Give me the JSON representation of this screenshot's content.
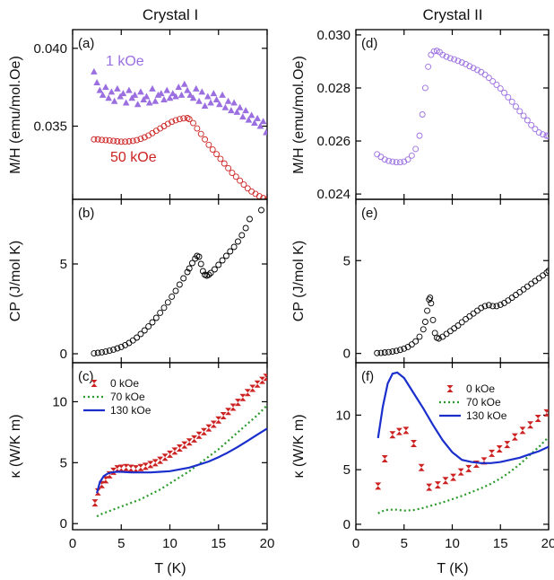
{
  "figure": {
    "columns": [
      {
        "title": "Crystal I",
        "xlabel": "T (K)"
      },
      {
        "title": "Crystal II",
        "xlabel": "T (K)"
      }
    ],
    "colors": {
      "purple": "#9b6fe0",
      "red": "#cc2222",
      "black": "#000000",
      "green": "#2a9a2a",
      "blue": "#1a2fcc"
    }
  },
  "chart_data": [
    {
      "panel": "(a)",
      "type": "scatter",
      "ylabel": "M/H (emu/mol.Oe)",
      "xlim": [
        0,
        20
      ],
      "ylim": [
        0.0303,
        0.0412
      ],
      "yticks": [
        0.035,
        0.04
      ],
      "yticklabels": [
        "0.035",
        "0.040"
      ],
      "xticks": [
        0,
        5,
        10,
        15,
        20
      ],
      "series": [
        {
          "name": "1 kOe",
          "marker": "triangle",
          "color": "#9b6fe0",
          "x": [
            2.2,
            2.5,
            2.8,
            3.1,
            3.4,
            3.7,
            4.0,
            4.3,
            4.6,
            4.9,
            5.2,
            5.5,
            5.8,
            6.1,
            6.4,
            6.7,
            7.0,
            7.3,
            7.6,
            7.9,
            8.2,
            8.5,
            8.8,
            9.1,
            9.4,
            9.7,
            10.0,
            10.3,
            10.6,
            10.9,
            11.2,
            11.5,
            11.8,
            12.1,
            12.4,
            12.7,
            13.0,
            13.3,
            13.6,
            13.9,
            14.2,
            14.5,
            14.8,
            15.1,
            15.4,
            15.7,
            16.0,
            16.3,
            16.6,
            16.9,
            17.2,
            17.5,
            17.8,
            18.1,
            18.4,
            18.7,
            19.0,
            19.3,
            19.6,
            19.9
          ],
          "y": [
            0.0385,
            0.0378,
            0.0373,
            0.037,
            0.0375,
            0.0368,
            0.0372,
            0.0366,
            0.0374,
            0.0369,
            0.0371,
            0.0365,
            0.0373,
            0.0368,
            0.037,
            0.0364,
            0.0372,
            0.0367,
            0.0369,
            0.0365,
            0.0374,
            0.0366,
            0.037,
            0.0371,
            0.0367,
            0.0373,
            0.0368,
            0.0371,
            0.0369,
            0.0375,
            0.037,
            0.0377,
            0.0373,
            0.037,
            0.0368,
            0.0374,
            0.0366,
            0.0372,
            0.0363,
            0.0369,
            0.0365,
            0.0371,
            0.0367,
            0.0364,
            0.037,
            0.0362,
            0.0366,
            0.036,
            0.0365,
            0.0359,
            0.0362,
            0.0356,
            0.036,
            0.0354,
            0.0357,
            0.0352,
            0.0355,
            0.035,
            0.0353,
            0.0346
          ]
        },
        {
          "name": "50 kOe",
          "marker": "circle-open",
          "color": "#cc2222",
          "x": [
            2.2,
            2.6,
            3.0,
            3.4,
            3.8,
            4.2,
            4.6,
            5.0,
            5.4,
            5.8,
            6.2,
            6.6,
            7.0,
            7.4,
            7.8,
            8.2,
            8.6,
            9.0,
            9.4,
            9.8,
            10.2,
            10.6,
            11.0,
            11.4,
            11.8,
            12.0,
            12.4,
            12.8,
            13.2,
            13.6,
            14.0,
            14.4,
            14.8,
            15.2,
            15.6,
            16.0,
            16.4,
            16.8,
            17.2,
            17.6,
            18.0,
            18.4,
            18.8,
            19.2,
            19.6,
            20.0
          ],
          "y": [
            0.03415,
            0.03415,
            0.03412,
            0.0341,
            0.03408,
            0.03405,
            0.03402,
            0.034,
            0.034,
            0.03402,
            0.03405,
            0.0341,
            0.03418,
            0.03428,
            0.0344,
            0.03455,
            0.0347,
            0.03485,
            0.035,
            0.03515,
            0.03528,
            0.03538,
            0.03545,
            0.0355,
            0.03552,
            0.03545,
            0.0352,
            0.03485,
            0.0345,
            0.03415,
            0.0338,
            0.0335,
            0.0332,
            0.0329,
            0.0326,
            0.0323,
            0.032,
            0.03175,
            0.0315,
            0.03125,
            0.031,
            0.0308,
            0.03065,
            0.0305,
            0.03038,
            0.0303
          ]
        }
      ]
    },
    {
      "panel": "(d)",
      "type": "scatter",
      "ylabel": "M/H (emu/mol.Oe)",
      "xlim": [
        0,
        20
      ],
      "ylim": [
        0.0238,
        0.0302
      ],
      "yticks": [
        0.024,
        0.026,
        0.028,
        0.03
      ],
      "yticklabels": [
        "0.024",
        "0.026",
        "0.028",
        "0.030"
      ],
      "xticks": [
        0,
        5,
        10,
        15,
        20
      ],
      "series": [
        {
          "name": "",
          "marker": "circle-open",
          "color": "#9b6fe0",
          "x": [
            2.2,
            2.6,
            3.0,
            3.4,
            3.8,
            4.2,
            4.6,
            5.0,
            5.4,
            5.8,
            6.2,
            6.6,
            6.9,
            7.2,
            7.5,
            7.8,
            8.1,
            8.4,
            8.7,
            9.0,
            9.4,
            9.8,
            10.2,
            10.6,
            11.0,
            11.4,
            11.8,
            12.2,
            12.6,
            13.0,
            13.4,
            13.8,
            14.2,
            14.6,
            15.0,
            15.4,
            15.8,
            16.2,
            16.6,
            17.0,
            17.4,
            17.8,
            18.2,
            18.6,
            19.0,
            19.4,
            19.8,
            20.0
          ],
          "y": [
            0.0255,
            0.0254,
            0.0253,
            0.02525,
            0.02522,
            0.0252,
            0.0252,
            0.02522,
            0.0253,
            0.02545,
            0.0257,
            0.0262,
            0.027,
            0.028,
            0.0288,
            0.02925,
            0.02938,
            0.0294,
            0.02935,
            0.02925,
            0.02918,
            0.02912,
            0.02908,
            0.02902,
            0.02896,
            0.0289,
            0.02882,
            0.02875,
            0.02868,
            0.0286,
            0.0285,
            0.02838,
            0.02825,
            0.02812,
            0.02798,
            0.02782,
            0.02765,
            0.02748,
            0.0273,
            0.02712,
            0.02695,
            0.02678,
            0.0266,
            0.02645,
            0.02632,
            0.02625,
            0.0262,
            0.02618
          ]
        }
      ]
    },
    {
      "panel": "(b)",
      "type": "scatter",
      "ylabel": "CP (J/mol K)",
      "xlim": [
        0,
        20
      ],
      "ylim": [
        -0.5,
        8.6
      ],
      "yticks": [
        0,
        5
      ],
      "yticklabels": [
        "0",
        "5"
      ],
      "xticks": [
        0,
        5,
        10,
        15,
        20
      ],
      "series": [
        {
          "name": "",
          "marker": "circle-open",
          "color": "#000000",
          "x": [
            2.2,
            2.6,
            3.0,
            3.4,
            3.8,
            4.2,
            4.6,
            5.0,
            5.4,
            5.8,
            6.2,
            6.6,
            7.0,
            7.4,
            7.8,
            8.2,
            8.6,
            9.0,
            9.4,
            9.8,
            10.2,
            10.6,
            11.0,
            11.4,
            11.8,
            12.0,
            12.3,
            12.6,
            12.8,
            13.0,
            13.2,
            13.4,
            13.6,
            13.8,
            14.0,
            14.2,
            14.6,
            15.0,
            15.4,
            15.8,
            16.2,
            16.6,
            17.0,
            17.4,
            17.8,
            18.2,
            19.4
          ],
          "y": [
            0.02,
            0.05,
            0.08,
            0.12,
            0.17,
            0.23,
            0.3,
            0.38,
            0.48,
            0.6,
            0.74,
            0.9,
            1.1,
            1.3,
            1.52,
            1.75,
            2.0,
            2.28,
            2.56,
            2.86,
            3.18,
            3.5,
            3.85,
            4.2,
            4.55,
            4.75,
            5.05,
            5.3,
            5.45,
            5.4,
            5.0,
            4.6,
            4.4,
            4.35,
            4.4,
            4.5,
            4.7,
            4.95,
            5.2,
            5.45,
            5.7,
            5.95,
            6.25,
            6.6,
            7.0,
            7.5,
            8.0
          ]
        }
      ]
    },
    {
      "panel": "(e)",
      "type": "scatter",
      "ylabel": "CP (J/mol K)",
      "xlim": [
        0,
        20
      ],
      "ylim": [
        -0.5,
        8.3
      ],
      "yticks": [
        0,
        5
      ],
      "yticklabels": [
        "0",
        "5"
      ],
      "xticks": [
        0,
        5,
        10,
        15,
        20
      ],
      "series": [
        {
          "name": "",
          "marker": "circle-open",
          "color": "#000000",
          "x": [
            2.2,
            2.6,
            3.0,
            3.4,
            3.8,
            4.2,
            4.6,
            5.0,
            5.4,
            5.8,
            6.2,
            6.6,
            7.0,
            7.2,
            7.4,
            7.6,
            7.7,
            7.8,
            8.0,
            8.2,
            8.4,
            8.6,
            9.0,
            9.4,
            9.8,
            10.2,
            10.6,
            11.0,
            11.4,
            11.8,
            12.2,
            12.6,
            13.0,
            13.4,
            13.8,
            14.2,
            14.6,
            15.0,
            15.4,
            15.8,
            16.2,
            16.6,
            17.0,
            17.4,
            17.8,
            18.2,
            18.6,
            19.0,
            19.4,
            19.8,
            20.0
          ],
          "y": [
            0.02,
            0.03,
            0.05,
            0.07,
            0.1,
            0.14,
            0.19,
            0.26,
            0.35,
            0.48,
            0.65,
            0.9,
            1.3,
            1.7,
            2.3,
            2.9,
            3.0,
            2.7,
            1.8,
            1.1,
            0.85,
            0.8,
            0.9,
            1.05,
            1.2,
            1.35,
            1.5,
            1.68,
            1.85,
            2.0,
            2.15,
            2.3,
            2.45,
            2.55,
            2.6,
            2.55,
            2.55,
            2.62,
            2.72,
            2.85,
            3.0,
            3.15,
            3.3,
            3.45,
            3.6,
            3.75,
            3.9,
            4.05,
            4.2,
            4.35,
            4.45
          ]
        }
      ]
    },
    {
      "panel": "(c)",
      "type": "scatter+line",
      "ylabel": "κ (W/K m)",
      "xlim": [
        0,
        20
      ],
      "ylim": [
        -0.5,
        13.2
      ],
      "yticks": [
        0,
        5,
        10
      ],
      "yticklabels": [
        "0",
        "5",
        "10"
      ],
      "xticks": [
        0,
        5,
        10,
        15,
        20
      ],
      "xticklabels": [
        "0",
        "5",
        "10",
        "15",
        "20"
      ],
      "legend": "top-left",
      "series": [
        {
          "name": "0 kOe",
          "marker": "hourglass",
          "color": "#cc2222",
          "x": [
            2.3,
            2.6,
            3.0,
            3.4,
            3.8,
            4.2,
            4.6,
            5.0,
            5.5,
            6.0,
            6.5,
            7.0,
            7.5,
            8.0,
            8.5,
            9.0,
            9.5,
            10.0,
            10.5,
            11.0,
            11.5,
            12.0,
            12.5,
            13.0,
            13.5,
            14.0,
            14.5,
            15.0,
            15.5,
            16.0,
            16.5,
            17.0,
            17.5,
            18.0,
            18.5,
            19.0,
            19.5,
            19.9
          ],
          "y": [
            1.7,
            2.6,
            3.2,
            3.6,
            4.0,
            4.3,
            4.5,
            4.55,
            4.6,
            4.55,
            4.5,
            4.6,
            4.7,
            4.85,
            5.0,
            5.2,
            5.45,
            5.7,
            5.95,
            6.2,
            6.45,
            6.7,
            6.95,
            7.25,
            7.55,
            7.85,
            8.15,
            8.5,
            8.85,
            9.2,
            9.55,
            9.95,
            10.35,
            10.75,
            11.1,
            11.45,
            11.75,
            12.0
          ]
        },
        {
          "name": "70 kOe",
          "line": "dotted",
          "color": "#2a9a2a",
          "x": [
            2.5,
            3,
            4,
            5,
            6,
            7,
            8,
            9,
            10,
            11,
            12,
            13,
            14,
            15,
            16,
            17,
            18,
            19,
            20
          ],
          "y": [
            0.6,
            0.8,
            1.1,
            1.4,
            1.7,
            2.0,
            2.4,
            2.8,
            3.3,
            3.8,
            4.3,
            4.9,
            5.5,
            6.1,
            6.8,
            7.5,
            8.2,
            8.9,
            9.7
          ]
        },
        {
          "name": "130 kOe",
          "line": "solid",
          "color": "#1a2fcc",
          "x": [
            2.5,
            2.8,
            3.2,
            3.6,
            4.0,
            4.5,
            5.0,
            6.0,
            7.0,
            8.0,
            9.0,
            10.0,
            11.0,
            12.0,
            13.0,
            14.0,
            15.0,
            16.0,
            17.0,
            18.0,
            19.0,
            20.0
          ],
          "y": [
            2.5,
            3.4,
            3.9,
            4.1,
            4.2,
            4.25,
            4.25,
            4.2,
            4.2,
            4.2,
            4.25,
            4.3,
            4.45,
            4.6,
            4.85,
            5.1,
            5.45,
            5.85,
            6.3,
            6.8,
            7.3,
            7.8
          ]
        }
      ]
    },
    {
      "panel": "(f)",
      "type": "scatter+line",
      "ylabel": "κ (W/K m)",
      "xlim": [
        0,
        20
      ],
      "ylim": [
        -0.5,
        14.8
      ],
      "yticks": [
        0,
        5,
        10
      ],
      "yticklabels": [
        "0",
        "5",
        "10"
      ],
      "xticks": [
        0,
        5,
        10,
        15,
        20
      ],
      "xticklabels": [
        "0",
        "5",
        "10",
        "15",
        "20"
      ],
      "legend": "top-right",
      "series": [
        {
          "name": "0 kOe",
          "marker": "hourglass",
          "color": "#cc2222",
          "x": [
            2.3,
            3.0,
            3.8,
            4.5,
            5.2,
            6.0,
            6.8,
            7.6,
            8.5,
            9.3,
            10.1,
            10.9,
            11.7,
            12.5,
            13.3,
            14.1,
            14.9,
            15.7,
            16.5,
            17.3,
            18.1,
            18.9,
            19.8
          ],
          "y": [
            3.5,
            6.0,
            8.2,
            8.5,
            8.6,
            7.4,
            5.2,
            3.4,
            3.6,
            4.0,
            4.3,
            4.8,
            5.1,
            5.5,
            5.8,
            6.5,
            6.9,
            7.3,
            8.0,
            8.6,
            9.1,
            9.7,
            10.2
          ]
        },
        {
          "name": "70 kOe",
          "line": "dotted",
          "color": "#2a9a2a",
          "x": [
            2.3,
            3,
            4,
            5,
            6,
            7,
            8,
            9,
            10,
            11,
            12,
            13,
            14,
            15,
            16,
            17,
            18,
            19,
            20
          ],
          "y": [
            1.0,
            1.3,
            1.35,
            1.25,
            1.3,
            1.5,
            1.75,
            2.0,
            2.3,
            2.6,
            2.95,
            3.3,
            3.7,
            4.2,
            4.8,
            5.5,
            6.3,
            7.1,
            8.0
          ]
        },
        {
          "name": "130 kOe",
          "line": "solid",
          "color": "#1a2fcc",
          "x": [
            2.3,
            2.8,
            3.3,
            3.8,
            4.3,
            5.0,
            6.0,
            7.0,
            8.0,
            9.0,
            10.0,
            11.0,
            12.0,
            13.0,
            14.0,
            15.0,
            16.0,
            17.0,
            18.0,
            19.0,
            20.0
          ],
          "y": [
            7.9,
            10.8,
            12.9,
            13.8,
            13.9,
            13.4,
            12.0,
            10.6,
            9.1,
            7.7,
            6.6,
            5.9,
            5.7,
            5.6,
            5.6,
            5.7,
            5.9,
            6.1,
            6.4,
            6.7,
            7.1
          ]
        }
      ]
    }
  ],
  "annotations": {
    "a_label": "1 kOe",
    "b_label": "50 kOe"
  }
}
